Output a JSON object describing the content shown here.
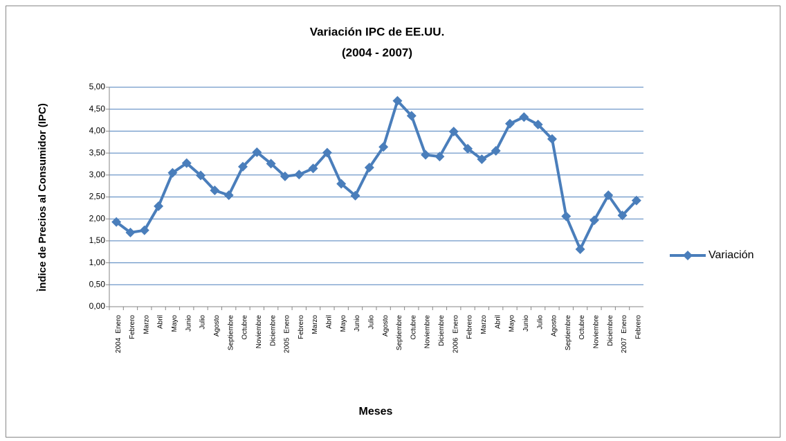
{
  "chart_data": {
    "type": "line",
    "title": "Variación IPC de EE.UU.",
    "subtitle": "(2004 - 2007)",
    "x_label": "Meses",
    "y_label": "Ìndice de Precios al Consumidor (IPC)",
    "categories": [
      "Enero",
      "Febrero",
      "Marzo",
      "Abril",
      "Mayo",
      "Junio",
      "Julio",
      "Agosto",
      "Septiembre",
      "Octubre",
      "Noviembre",
      "Diciembre",
      "Enero",
      "Febrero",
      "Marzo",
      "Abril",
      "Mayo",
      "Junio",
      "Julio",
      "Agosto",
      "Septiembre",
      "Octubre",
      "Noviembre",
      "Diciembre",
      "Enero",
      "Febrero",
      "Marzo",
      "Abril",
      "Mayo",
      "Junio",
      "Julio",
      "Agosto",
      "Septiembre",
      "Octubre",
      "Noviembre",
      "Diciembre",
      "Enero",
      "Febrero"
    ],
    "category_years": [
      "2004",
      null,
      null,
      null,
      null,
      null,
      null,
      null,
      null,
      null,
      null,
      null,
      "2005",
      null,
      null,
      null,
      null,
      null,
      null,
      null,
      null,
      null,
      null,
      null,
      "2006",
      null,
      null,
      null,
      null,
      null,
      null,
      null,
      null,
      null,
      null,
      null,
      "2007",
      null
    ],
    "series": [
      {
        "name": "Variación",
        "color": "#4a7ebb",
        "values": [
          1.93,
          1.69,
          1.74,
          2.29,
          3.05,
          3.27,
          2.99,
          2.65,
          2.54,
          3.19,
          3.52,
          3.26,
          2.97,
          3.01,
          3.15,
          3.51,
          2.8,
          2.53,
          3.17,
          3.64,
          4.69,
          4.35,
          3.46,
          3.42,
          3.99,
          3.6,
          3.36,
          3.55,
          4.17,
          4.32,
          4.15,
          3.82,
          2.06,
          1.31,
          1.97,
          2.54,
          2.08,
          2.42
        ]
      }
    ],
    "ylim": [
      0,
      5
    ],
    "yticks": [
      {
        "value": 0,
        "label": "0,00"
      },
      {
        "value": 0.5,
        "label": "0,50"
      },
      {
        "value": 1,
        "label": "1,00"
      },
      {
        "value": 1.5,
        "label": "1,50"
      },
      {
        "value": 2,
        "label": "2,00"
      },
      {
        "value": 2.5,
        "label": "2,50"
      },
      {
        "value": 3,
        "label": "3,00"
      },
      {
        "value": 3.5,
        "label": "3,50"
      },
      {
        "value": 4,
        "label": "4,00"
      },
      {
        "value": 4.5,
        "label": "4,50"
      },
      {
        "value": 5,
        "label": "5,00"
      }
    ],
    "grid": true,
    "legend": "right"
  }
}
